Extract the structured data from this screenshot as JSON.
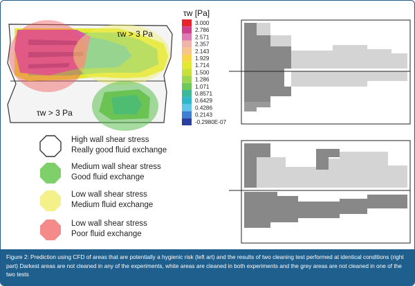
{
  "colorbar": {
    "title": "τw [Pa]",
    "ticks": [
      "3.000",
      "2.786",
      "2.571",
      "2.357",
      "2.143",
      "1.929",
      "1.714",
      "1.500",
      "1.286",
      "1.071",
      "0.8571",
      "0.6429",
      "0.4286",
      "0.2143",
      "-0.2980E-07"
    ],
    "colors": [
      "#e8232a",
      "#cf3f8c",
      "#e07ab5",
      "#f0b4a8",
      "#f7c58a",
      "#f8d64a",
      "#e3e832",
      "#c8e03a",
      "#9cd64e",
      "#6cc95a",
      "#3cb99a",
      "#2fb6c8",
      "#5ec5e8",
      "#3e7fd6",
      "#2a3f9e"
    ]
  },
  "annotations": {
    "top": "τw > 3 Pa",
    "bottom": "τw > 3 Pa"
  },
  "legend": [
    {
      "title": "High wall shear stress",
      "subtitle": "Really good fluid exchange",
      "color": "#ffffff",
      "icon": "octagon-white-icon"
    },
    {
      "title": "Medium wall shear stress",
      "subtitle": "Good fluid exchange",
      "color": "#7fcf6a",
      "icon": "octagon-green-icon"
    },
    {
      "title": "Low wall shear stress",
      "subtitle": "Medium fluid exchange",
      "color": "#f4f08a",
      "icon": "octagon-yellow-icon"
    },
    {
      "title": "Low wall shear stress",
      "subtitle": "Poor fluid exchange",
      "color": "#f58a8a",
      "icon": "octagon-red-icon"
    }
  ],
  "caption": "Figure 2: Prediction using CFD of areas that are potentially a hygienic risk (left art) and the results of two cleaning test performed at identical conditions (right part) Darkest areas are not cleaned in any of the experiments, white areas are cleaned in both experiments and the grey areas are not cleaned in one of the two tests",
  "colors": {
    "dark_grey": "#888888",
    "light_grey": "#d4d4d4",
    "caption_bg": "#1f5f8e"
  }
}
